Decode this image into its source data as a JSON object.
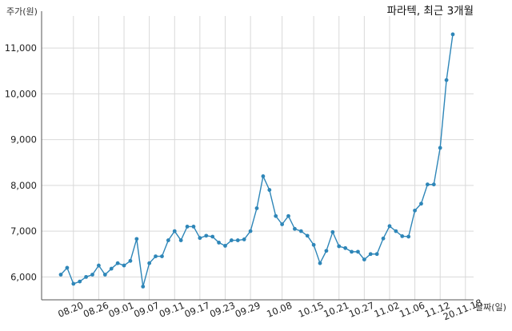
{
  "chart_data": {
    "type": "line",
    "title": "파라텍, 최근 3개월",
    "xlabel": "날짜(일)",
    "ylabel": "주가(원)",
    "ylim": [
      5500,
      11700
    ],
    "yticks": [
      6000,
      7000,
      8000,
      9000,
      10000,
      11000
    ],
    "ytick_labels": [
      "6,000",
      "7,000",
      "8,000",
      "9,000",
      "10,000",
      "11,000"
    ],
    "xtick_labels": [
      "08.20",
      "08.26",
      "09.01",
      "09.07",
      "09.11",
      "09.17",
      "09.23",
      "09.29",
      "10.08",
      "10.15",
      "10.21",
      "10.27",
      "11.02",
      "11.06",
      "11.12",
      "20.11.18"
    ],
    "xtick_indices": [
      2,
      6,
      10,
      14,
      18,
      22,
      26,
      30,
      35,
      40,
      44,
      48,
      52,
      56,
      60,
      64
    ],
    "grid": true,
    "color": "#2e86b8",
    "series": [
      {
        "name": "",
        "values": [
          6050,
          6200,
          5850,
          5900,
          6000,
          6050,
          6250,
          6050,
          6180,
          6300,
          6250,
          6350,
          6830,
          5790,
          6300,
          6450,
          6450,
          6800,
          7000,
          6800,
          7100,
          7100,
          6850,
          6900,
          6880,
          6750,
          6680,
          6800,
          6800,
          6820,
          7000,
          7500,
          8200,
          7900,
          7330,
          7150,
          7330,
          7050,
          7000,
          6900,
          6700,
          6300,
          6570,
          6980,
          6670,
          6630,
          6550,
          6550,
          6380,
          6500,
          6500,
          6840,
          7110,
          7000,
          6890,
          6880,
          7450,
          7600,
          8020,
          8020,
          8820,
          10300,
          11300
        ]
      }
    ]
  }
}
